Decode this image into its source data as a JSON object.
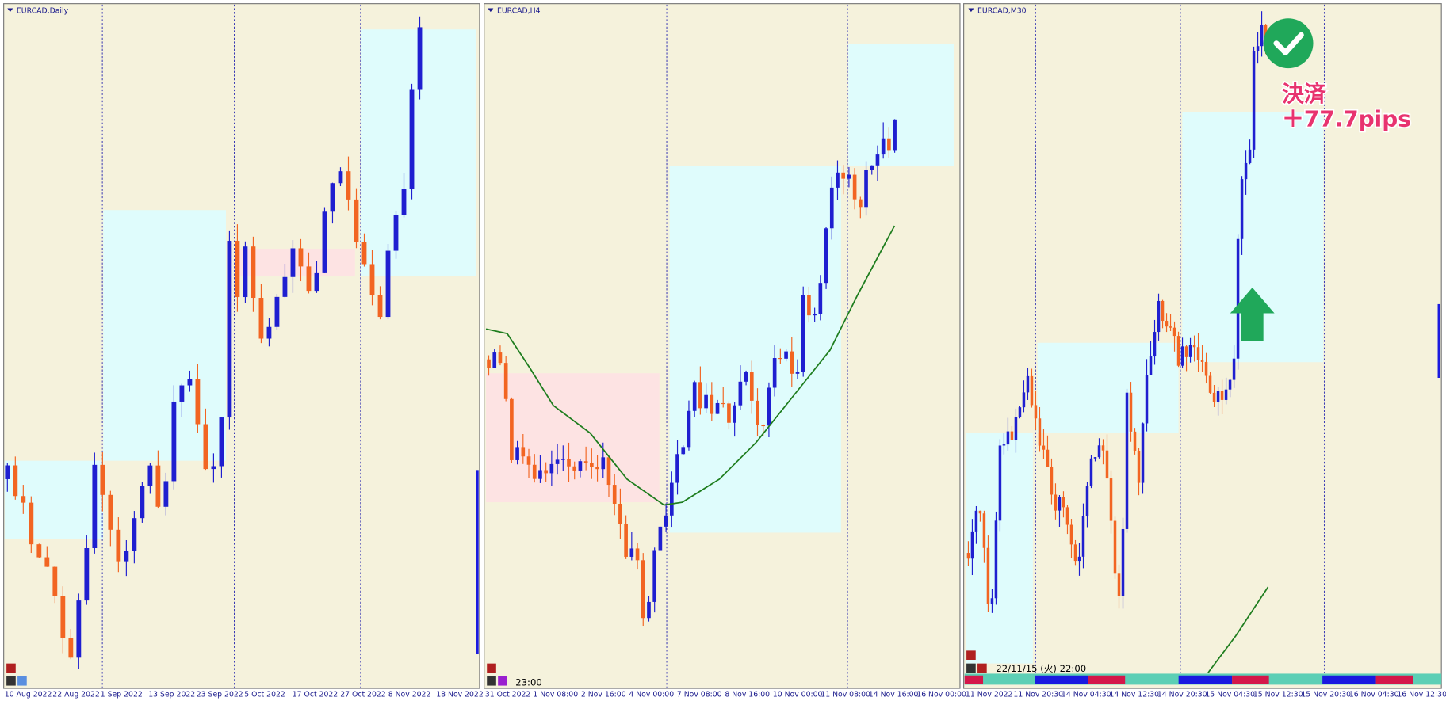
{
  "panels": [
    {
      "title": "EURCAD,Daily",
      "x_labels": [
        "10 Aug 2022",
        "22 Aug 2022",
        "1 Sep 2022",
        "13 Sep 2022",
        "23 Sep 2022",
        "5 Oct 2022",
        "17 Oct 2022",
        "27 Oct 2022",
        "8 Nov 2022",
        "18 Nov 2022"
      ]
    },
    {
      "title": "EURCAD,H4",
      "x_labels": [
        "31 Oct 2022",
        "1 Nov 08:00",
        "2 Nov 16:00",
        "4 Nov 00:00",
        "7 Nov 08:00",
        "8 Nov 16:00",
        "10 Nov 00:00",
        "11 Nov 08:00",
        "14 Nov 16:00",
        "16 Nov 00:00"
      ],
      "time_label": "23:00"
    },
    {
      "title": "EURCAD,M30",
      "x_labels": [
        "11 Nov 2022",
        "11 Nov 20:30",
        "14 Nov 04:30",
        "14 Nov 12:30",
        "14 Nov 20:30",
        "15 Nov 04:30",
        "15 Nov 12:30",
        "15 Nov 20:30",
        "16 Nov 04:30",
        "16 Nov 12:30"
      ],
      "time_label": "22/11/15 (火) 22:00"
    }
  ],
  "annotation": {
    "status": "決済",
    "result": "＋77.7pips"
  }
}
